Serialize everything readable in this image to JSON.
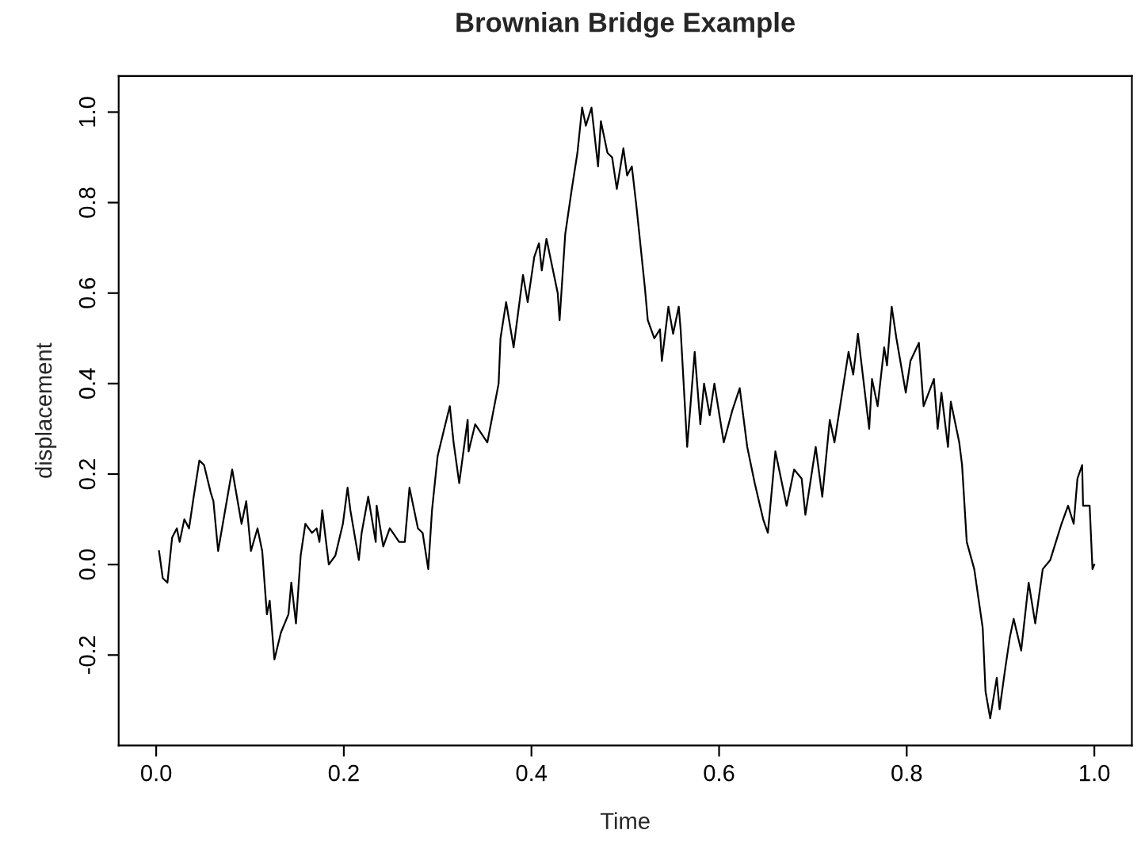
{
  "chart_data": {
    "type": "line",
    "title": "Brownian Bridge Example",
    "xlabel": "Time",
    "ylabel": "displacement",
    "x": [
      0.003,
      0.007,
      0.012,
      0.017,
      0.022,
      0.025,
      0.03,
      0.035,
      0.04,
      0.046,
      0.051,
      0.058,
      0.061,
      0.066,
      0.071,
      0.081,
      0.091,
      0.096,
      0.101,
      0.108,
      0.113,
      0.118,
      0.121,
      0.126,
      0.133,
      0.141,
      0.144,
      0.149,
      0.154,
      0.159,
      0.166,
      0.171,
      0.174,
      0.177,
      0.184,
      0.191,
      0.199,
      0.204,
      0.207,
      0.216,
      0.219,
      0.226,
      0.234,
      0.235,
      0.242,
      0.249,
      0.259,
      0.265,
      0.27,
      0.279,
      0.284,
      0.29,
      0.294,
      0.3,
      0.307,
      0.313,
      0.317,
      0.323,
      0.332,
      0.333,
      0.34,
      0.353,
      0.365,
      0.367,
      0.373,
      0.381,
      0.391,
      0.396,
      0.403,
      0.408,
      0.411,
      0.416,
      0.428,
      0.43,
      0.436,
      0.443,
      0.449,
      0.454,
      0.458,
      0.464,
      0.471,
      0.474,
      0.481,
      0.486,
      0.491,
      0.498,
      0.502,
      0.507,
      0.512,
      0.521,
      0.524,
      0.531,
      0.537,
      0.539,
      0.546,
      0.551,
      0.557,
      0.559,
      0.566,
      0.574,
      0.58,
      0.584,
      0.59,
      0.595,
      0.605,
      0.614,
      0.622,
      0.63,
      0.638,
      0.647,
      0.652,
      0.66,
      0.672,
      0.68,
      0.688,
      0.692,
      0.703,
      0.71,
      0.718,
      0.723,
      0.738,
      0.743,
      0.748,
      0.76,
      0.763,
      0.769,
      0.776,
      0.779,
      0.784,
      0.789,
      0.799,
      0.804,
      0.813,
      0.818,
      0.829,
      0.833,
      0.837,
      0.844,
      0.847,
      0.856,
      0.859,
      0.864,
      0.872,
      0.881,
      0.884,
      0.889,
      0.896,
      0.899,
      0.905,
      0.91,
      0.914,
      0.922,
      0.93,
      0.937,
      0.945,
      0.953,
      0.959,
      0.965,
      0.972,
      0.978,
      0.982,
      0.987,
      0.988,
      0.995,
      0.998,
      1.0
    ],
    "series": [
      {
        "color": "#000000",
        "values": [
          0.03,
          -0.03,
          -0.04,
          0.06,
          0.08,
          0.05,
          0.1,
          0.08,
          0.15,
          0.23,
          0.22,
          0.16,
          0.14,
          0.03,
          0.09,
          0.21,
          0.09,
          0.14,
          0.03,
          0.08,
          0.03,
          -0.11,
          -0.08,
          -0.21,
          -0.15,
          -0.11,
          -0.04,
          -0.13,
          0.02,
          0.09,
          0.07,
          0.08,
          0.05,
          0.12,
          0.0,
          0.02,
          0.09,
          0.17,
          0.12,
          0.01,
          0.07,
          0.15,
          0.05,
          0.13,
          0.04,
          0.08,
          0.05,
          0.05,
          0.17,
          0.08,
          0.07,
          -0.01,
          0.12,
          0.24,
          0.3,
          0.35,
          0.27,
          0.18,
          0.32,
          0.25,
          0.31,
          0.27,
          0.4,
          0.5,
          0.58,
          0.48,
          0.64,
          0.58,
          0.68,
          0.71,
          0.65,
          0.72,
          0.6,
          0.54,
          0.73,
          0.83,
          0.91,
          1.01,
          0.97,
          1.01,
          0.88,
          0.98,
          0.91,
          0.9,
          0.83,
          0.92,
          0.86,
          0.88,
          0.79,
          0.61,
          0.54,
          0.5,
          0.52,
          0.45,
          0.57,
          0.51,
          0.57,
          0.52,
          0.26,
          0.47,
          0.31,
          0.4,
          0.33,
          0.4,
          0.27,
          0.34,
          0.39,
          0.26,
          0.18,
          0.1,
          0.07,
          0.25,
          0.13,
          0.21,
          0.19,
          0.11,
          0.26,
          0.15,
          0.32,
          0.27,
          0.47,
          0.42,
          0.51,
          0.3,
          0.41,
          0.35,
          0.48,
          0.44,
          0.57,
          0.5,
          0.38,
          0.45,
          0.49,
          0.35,
          0.41,
          0.3,
          0.38,
          0.26,
          0.36,
          0.27,
          0.22,
          0.05,
          -0.01,
          -0.14,
          -0.28,
          -0.34,
          -0.25,
          -0.32,
          -0.23,
          -0.16,
          -0.12,
          -0.19,
          -0.04,
          -0.13,
          -0.01,
          0.01,
          0.05,
          0.09,
          0.13,
          0.09,
          0.19,
          0.22,
          0.13,
          0.13,
          -0.01,
          0.0
        ]
      }
    ],
    "xlim": [
      -0.04,
      1.04
    ],
    "ylim": [
      -0.4,
      1.08
    ],
    "xticks": [
      {
        "value": 0,
        "label": "0.0"
      },
      0.2,
      0.4,
      0.6,
      0.8,
      {
        "value": 1,
        "label": "1.0"
      }
    ],
    "yticks": [
      -0.2,
      {
        "value": 0,
        "label": "0.0"
      },
      0.2,
      0.4,
      0.6,
      0.8,
      {
        "value": 1,
        "label": "1.0"
      }
    ],
    "grid": false,
    "line_style": "solid",
    "marker": "none"
  }
}
